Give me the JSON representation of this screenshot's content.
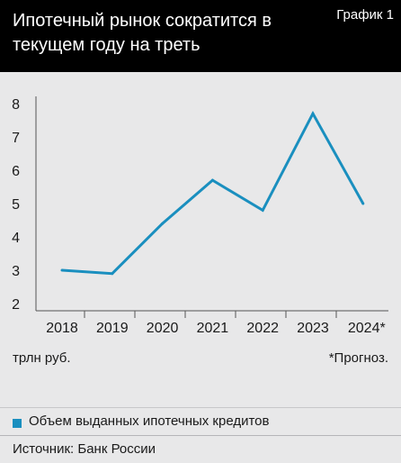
{
  "header": {
    "title": "Ипотечный рынок сократится в текущем году на треть",
    "tag": "График 1"
  },
  "chart_data": {
    "type": "line",
    "title": "Ипотечный рынок сократится в текущем году на треть",
    "categories": [
      "2018",
      "2019",
      "2020",
      "2021",
      "2022",
      "2023",
      "2024*"
    ],
    "series": [
      {
        "name": "Объем выданных ипотечных кредитов",
        "values": [
          3.0,
          2.9,
          4.4,
          5.7,
          4.8,
          7.7,
          5.0
        ]
      }
    ],
    "yticks": [
      "2",
      "3",
      "4",
      "5",
      "6",
      "7",
      "8"
    ],
    "ylim": [
      2,
      8
    ],
    "ylabel": "трлн руб.",
    "note": "*Прогноз.",
    "color": "#1a8fbf",
    "grid": false,
    "legend": "bottom-left"
  },
  "source": "Источник: Банк России"
}
